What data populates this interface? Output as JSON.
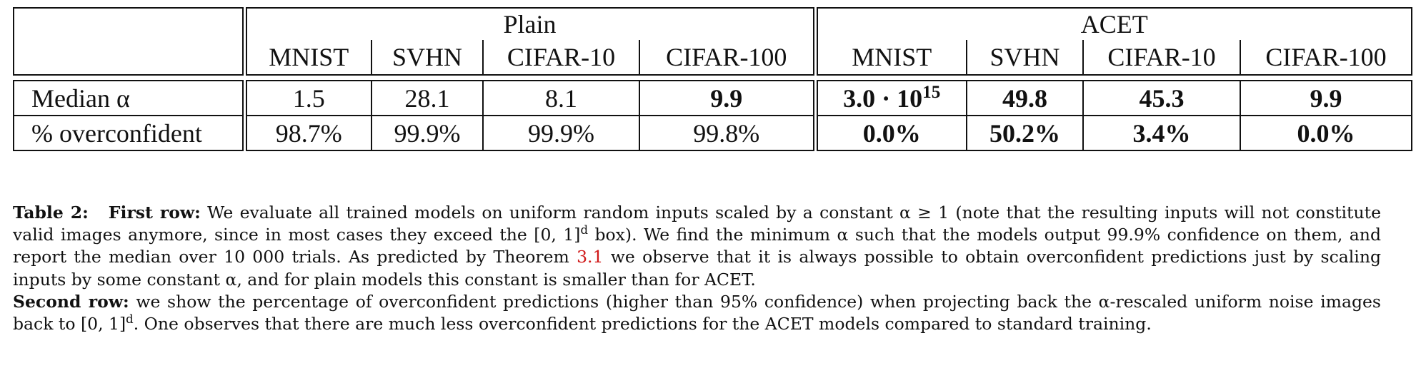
{
  "table": {
    "groups": [
      "Plain",
      "ACET"
    ],
    "columns": [
      "MNIST",
      "SVHN",
      "CIFAR-10",
      "CIFAR-100",
      "MNIST",
      "SVHN",
      "CIFAR-10",
      "CIFAR-100"
    ],
    "rows": [
      {
        "label": "Median α",
        "values": [
          "1.5",
          "28.1",
          "8.1",
          "9.9",
          "3.0 · 10",
          "49.8",
          "45.3",
          "9.9"
        ],
        "mnist_acet_exponent": "15"
      },
      {
        "label": "% overconfident",
        "values": [
          "98.7%",
          "99.9%",
          "99.9%",
          "99.8%",
          "0.0%",
          "50.2%",
          "3.4%",
          "0.0%"
        ]
      }
    ]
  },
  "caption": {
    "label": "Table 2:",
    "first_row_label": "First row:",
    "part1": "We evaluate all trained models on uniform random inputs scaled by a constant α ≥ 1 (note that the resulting inputs will not constitute valid images anymore, since in most cases they exceed the [0, 1]",
    "sup_d": "d",
    "part2": " box).  We find the minimum α such that the models output 99.9% confidence on them, and report the median over 10 000 trials. As predicted by Theorem ",
    "theorem_ref": "3.1",
    "part3": " we observe that it is always possible to obtain overconfident predictions just by scaling inputs by some constant α, and for plain models this constant is smaller than for ACET.",
    "second_row_label": "Second row:",
    "part4": " we show the percentage of overconfident predictions (higher than 95% confidence) when projecting back the α-rescaled uniform noise images back to [0, 1]",
    "part5": ".  One observes that there are much less overconfident predictions for the ACET models compared to standard training."
  }
}
